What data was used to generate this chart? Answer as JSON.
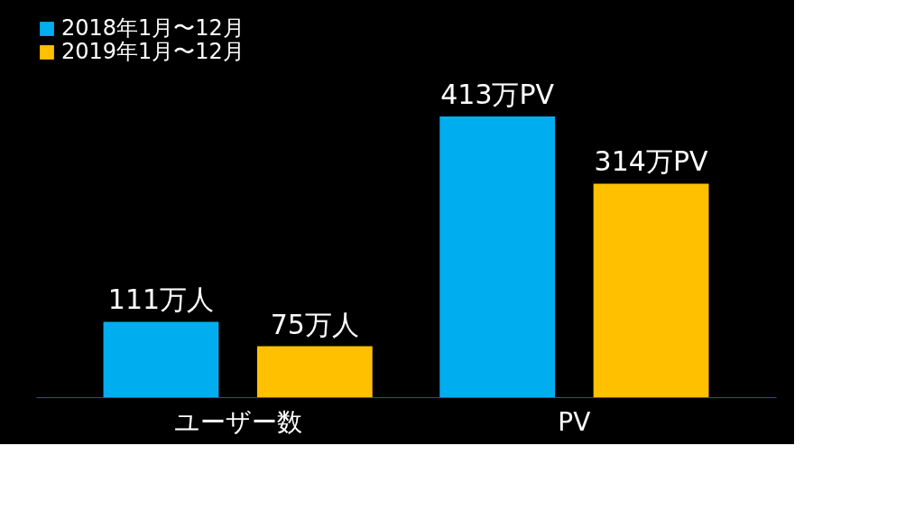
{
  "chart_data": {
    "type": "bar",
    "categories": [
      "ユーザー数",
      "PV"
    ],
    "legend": "top left",
    "series": [
      {
        "name": "2018年1月〜12月",
        "color": "#00aeef",
        "values": [
          111,
          413
        ],
        "value_labels": [
          "111万人",
          "413万PV"
        ]
      },
      {
        "name": "2019年1月〜12月",
        "color": "#ffc000",
        "values": [
          75,
          314
        ],
        "value_labels": [
          "75万人",
          "314万PV"
        ]
      }
    ]
  }
}
